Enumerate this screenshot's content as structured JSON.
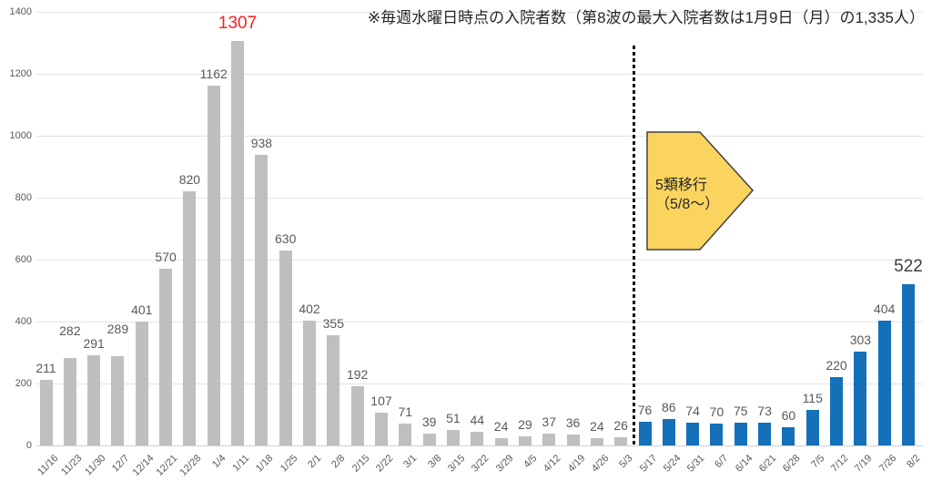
{
  "note": "※毎週水曜日時点の入院者数（第8波の最大入院者数は1月9日（月）の1,335人）",
  "chart_data": {
    "type": "bar",
    "title": "※毎週水曜日時点の入院者数（第8波の最大入院者数は1月9日（月）の1,335人）",
    "xlabel": "",
    "ylabel": "",
    "categories": [
      "11/16",
      "11/23",
      "11/30",
      "12/7",
      "12/14",
      "12/21",
      "12/28",
      "1/4",
      "1/11",
      "1/18",
      "1/25",
      "2/1",
      "2/8",
      "2/15",
      "2/22",
      "3/1",
      "3/8",
      "3/15",
      "3/22",
      "3/29",
      "4/5",
      "4/12",
      "4/19",
      "4/26",
      "5/3",
      "5/17",
      "5/24",
      "5/31",
      "6/7",
      "6/14",
      "6/21",
      "6/28",
      "7/5",
      "7/12",
      "7/19",
      "7/26",
      "8/2"
    ],
    "values": [
      211,
      282,
      291,
      289,
      401,
      570,
      820,
      1162,
      1307,
      938,
      630,
      402,
      355,
      192,
      107,
      71,
      39,
      51,
      44,
      24,
      29,
      37,
      36,
      24,
      26,
      76,
      86,
      74,
      70,
      75,
      73,
      60,
      115,
      220,
      303,
      404,
      522
    ],
    "ylim": [
      0,
      1400
    ],
    "yticks": [
      0,
      200,
      400,
      600,
      800,
      1000,
      1200,
      1400
    ],
    "grid": true,
    "legend": "none",
    "post_transition_start_index": 25,
    "peak_index": 8,
    "latest_index": 36,
    "raised_label_indices": [
      1,
      3
    ],
    "colors": {
      "pre_transition_bar": "#BFBFBF",
      "post_transition_bar": "#1470B9",
      "value_label": "#595959",
      "peak_label": "#FF2020",
      "latest_label": "#404040",
      "callout_fill": "#FAD45F",
      "callout_border": "#404040"
    },
    "divider_between": [
      "5/3",
      "5/17"
    ],
    "callout": {
      "line1": "5類移行",
      "line2": "（5/8～）"
    }
  }
}
